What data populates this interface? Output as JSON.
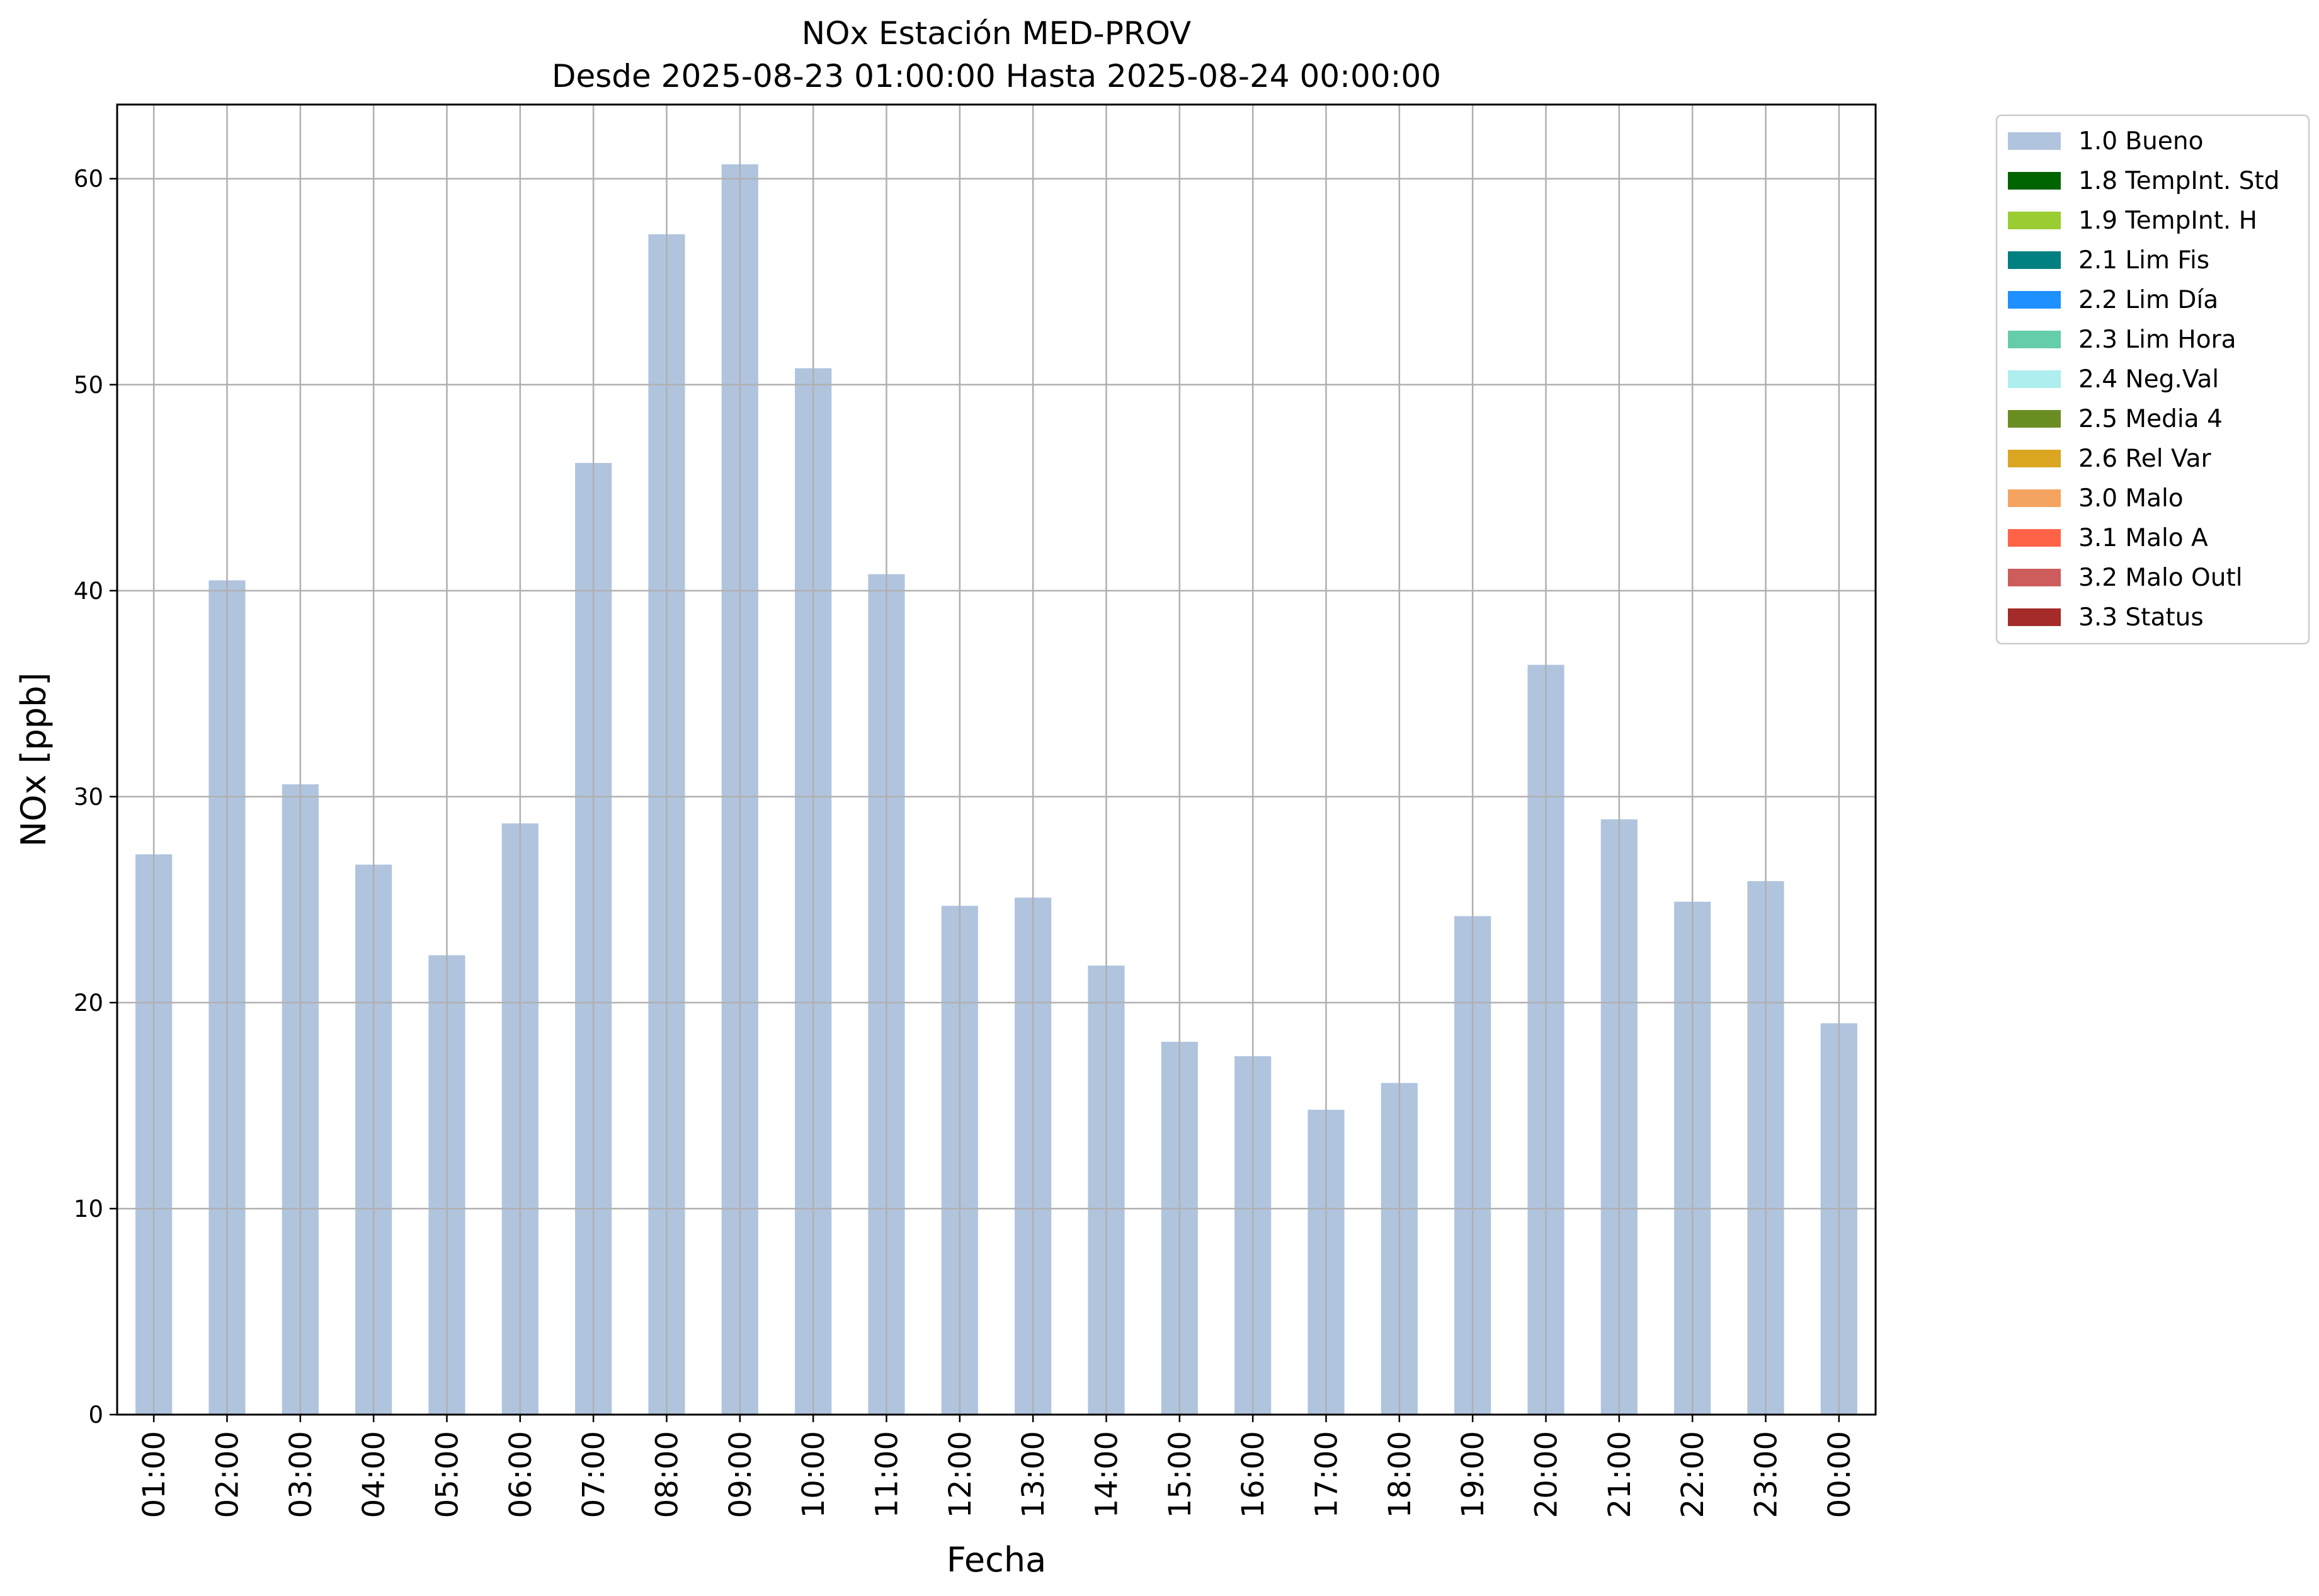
{
  "chart_data": {
    "type": "bar",
    "title": "NOx Estación MED-PROV",
    "subtitle": "Desde 2025-08-23 01:00:00 Hasta 2025-08-24 00:00:00",
    "xlabel": "Fecha",
    "ylabel": "NOx [ppb]",
    "ylim": [
      0,
      63.6
    ],
    "yticks": [
      0,
      10,
      20,
      30,
      40,
      50,
      60
    ],
    "grid": true,
    "legend_position": "outside-top-right",
    "categories": [
      "01:00",
      "02:00",
      "03:00",
      "04:00",
      "05:00",
      "06:00",
      "07:00",
      "08:00",
      "09:00",
      "10:00",
      "11:00",
      "12:00",
      "13:00",
      "14:00",
      "15:00",
      "16:00",
      "17:00",
      "18:00",
      "19:00",
      "20:00",
      "21:00",
      "22:00",
      "23:00",
      "00:00"
    ],
    "series": [
      {
        "name": "1.0 Bueno",
        "color": "#b0c4de",
        "values": [
          27.2,
          40.5,
          30.6,
          26.7,
          22.3,
          28.7,
          46.2,
          57.3,
          60.7,
          50.8,
          40.8,
          24.7,
          25.1,
          21.8,
          18.1,
          17.4,
          14.8,
          16.1,
          24.2,
          36.4,
          28.9,
          24.9,
          25.9,
          19.0
        ]
      }
    ],
    "legend": [
      {
        "label": "1.0 Bueno",
        "color": "#b0c4de"
      },
      {
        "label": "1.8 TempInt. Std",
        "color": "#006400"
      },
      {
        "label": "1.9 TempInt. H",
        "color": "#9acd32"
      },
      {
        "label": "2.1 Lim Fis",
        "color": "#008080"
      },
      {
        "label": "2.2 Lim Día",
        "color": "#1e90ff"
      },
      {
        "label": "2.3 Lim Hora",
        "color": "#66cdaa"
      },
      {
        "label": "2.4 Neg.Val",
        "color": "#afeeee"
      },
      {
        "label": "2.5 Media 4",
        "color": "#6b8e23"
      },
      {
        "label": "2.6 Rel Var",
        "color": "#daa520"
      },
      {
        "label": "3.0 Malo",
        "color": "#f4a460"
      },
      {
        "label": "3.1 Malo A",
        "color": "#ff6347"
      },
      {
        "label": "3.2 Malo Outl",
        "color": "#cd5c5c"
      },
      {
        "label": "3.3 Status",
        "color": "#a52a2a"
      }
    ]
  }
}
